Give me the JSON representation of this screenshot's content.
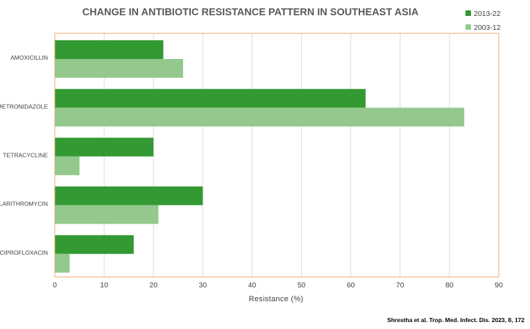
{
  "chart_data": {
    "type": "bar",
    "orientation": "horizontal",
    "title": "CHANGE IN ANTIBIOTIC RESISTANCE PATTERN IN SOUTHEAST ASIA",
    "xlabel": "Resistance (%)",
    "ylabel": "",
    "xlim": [
      0,
      90
    ],
    "xticks": [
      "0",
      "10",
      "20",
      "30",
      "40",
      "50",
      "60",
      "70",
      "80",
      "90"
    ],
    "grid": "vertical",
    "legend_position": "top-right",
    "categories": [
      "AMOXICILLIN",
      "METRONIDAZOLE",
      "TETRACYCLINE",
      "CLARITHROMYCIN",
      "CIPROFLOXACIN"
    ],
    "series": [
      {
        "name": "2013-22",
        "color": "#339933",
        "values": [
          22,
          63,
          20,
          30,
          16
        ]
      },
      {
        "name": "2003-12",
        "color": "#93c98d",
        "values": [
          26,
          83,
          5,
          21,
          3
        ]
      }
    ]
  },
  "source": "Shrestha et al.  Trop. Med. Infect. Dis.  2023, 8, 172",
  "colors": {
    "plot_border": "#f0a56a",
    "grid": "#d9d9d9"
  }
}
